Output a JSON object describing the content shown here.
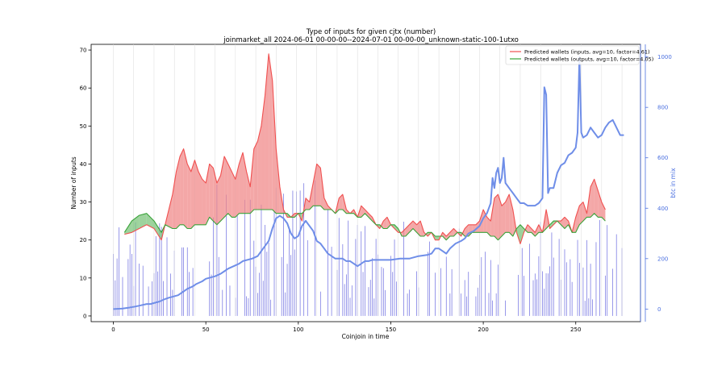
{
  "chart_data": {
    "type": "line",
    "title": "Type of inputs for given cjtx (number)",
    "subtitle": "joinmarket_all 2024-06-01 00-00-00--2024-07-01 00-00-00_unknown-static-100-1utxo",
    "xlabel": "Coinjoin in time",
    "ylabel": "Number of inputs",
    "y2label": "btc in mix",
    "xlim": [
      -12,
      285
    ],
    "ylim": [
      -1.5,
      71.5
    ],
    "y2lim": [
      -50,
      1050
    ],
    "xticks": [
      0,
      50,
      100,
      150,
      200,
      250
    ],
    "yticks": [
      0,
      10,
      20,
      30,
      40,
      50,
      60,
      70
    ],
    "y2ticks": [
      0,
      200,
      400,
      600,
      800,
      1000
    ],
    "legend_position": "upper right",
    "series": [
      {
        "name": "Predicted wallets (inputs, avg=10, factor=4.61)",
        "color": "#f05050",
        "x": [
          6,
          10,
          14,
          18,
          22,
          26,
          28,
          32,
          34,
          36,
          38,
          40,
          42,
          44,
          46,
          48,
          50,
          52,
          54,
          56,
          58,
          60,
          62,
          64,
          66,
          68,
          70,
          72,
          74,
          76,
          78,
          80,
          82,
          84,
          86,
          88,
          90,
          92,
          94,
          96,
          98,
          100,
          102,
          104,
          106,
          108,
          110,
          112,
          114,
          116,
          118,
          120,
          122,
          124,
          126,
          128,
          130,
          132,
          134,
          136,
          138,
          140,
          142,
          144,
          146,
          148,
          150,
          152,
          154,
          156,
          158,
          160,
          162,
          164,
          166,
          168,
          170,
          172,
          174,
          176,
          178,
          180,
          182,
          184,
          186,
          188,
          190,
          192,
          194,
          196,
          198,
          200,
          202,
          204,
          206,
          208,
          210,
          212,
          214,
          216,
          218,
          220,
          222,
          224,
          226,
          228,
          230,
          232,
          234,
          236,
          238,
          240,
          242,
          244,
          246,
          248,
          250,
          252,
          254,
          256,
          258,
          260,
          262,
          264,
          266
        ],
        "values": [
          21.5,
          22,
          23,
          24,
          23,
          20,
          24,
          32,
          38,
          42,
          44,
          40,
          38,
          41,
          38,
          36,
          35,
          40,
          39,
          35,
          37,
          42,
          40,
          38,
          36,
          40,
          43,
          38,
          34,
          44,
          46,
          50,
          58,
          69,
          62,
          44,
          34,
          28,
          26,
          26,
          27,
          27,
          25,
          31,
          30,
          35,
          40,
          39,
          31,
          29,
          28,
          27,
          31,
          32,
          28,
          27,
          28,
          26,
          29,
          28,
          27,
          26,
          24,
          23,
          25,
          26,
          24,
          23,
          22,
          22,
          23,
          24,
          25,
          24,
          25,
          22,
          21,
          22,
          20,
          20,
          22,
          21,
          22,
          23,
          22,
          21,
          23,
          24,
          24,
          24,
          25,
          28,
          26,
          25,
          31,
          32,
          29,
          30,
          32,
          28,
          22,
          19,
          22,
          24,
          23,
          22,
          24,
          22,
          28,
          23,
          24,
          25,
          25,
          26,
          25,
          22,
          26,
          29,
          30,
          27,
          34,
          36,
          33,
          30,
          28
        ]
      },
      {
        "name": "Predicted wallets (outputs, avg=10, factor=4.05)",
        "color": "#3aa33a",
        "x": [
          6,
          10,
          14,
          18,
          22,
          26,
          28,
          32,
          34,
          36,
          38,
          40,
          42,
          44,
          46,
          48,
          50,
          52,
          54,
          56,
          58,
          60,
          62,
          64,
          66,
          68,
          70,
          72,
          74,
          76,
          78,
          80,
          82,
          84,
          86,
          88,
          90,
          92,
          94,
          96,
          98,
          100,
          102,
          104,
          106,
          108,
          110,
          112,
          114,
          116,
          118,
          120,
          122,
          124,
          126,
          128,
          130,
          132,
          134,
          136,
          138,
          140,
          142,
          144,
          146,
          148,
          150,
          152,
          154,
          156,
          158,
          160,
          162,
          164,
          166,
          168,
          170,
          172,
          174,
          176,
          178,
          180,
          182,
          184,
          186,
          188,
          190,
          192,
          194,
          196,
          198,
          200,
          202,
          204,
          206,
          208,
          210,
          212,
          214,
          216,
          218,
          220,
          222,
          224,
          226,
          228,
          230,
          232,
          234,
          236,
          238,
          240,
          242,
          244,
          246,
          248,
          250,
          252,
          254,
          256,
          258,
          260,
          262,
          264,
          266
        ],
        "values": [
          22,
          25,
          26.5,
          27,
          25,
          22,
          24,
          23,
          23,
          24,
          24,
          23,
          23,
          24,
          24,
          24,
          24,
          26,
          25,
          24,
          25,
          26,
          27,
          26,
          26,
          27,
          27,
          27,
          27,
          28,
          28,
          28,
          28,
          28,
          28,
          27,
          27,
          27,
          27,
          26,
          26,
          27,
          27,
          28,
          28,
          29,
          29,
          29,
          28,
          28,
          28,
          27,
          28,
          28,
          27,
          27,
          27,
          26,
          26,
          27,
          26,
          25,
          24,
          24,
          23,
          23,
          24,
          24,
          23,
          21,
          21,
          22,
          23,
          22,
          21,
          21,
          22,
          22,
          21,
          21,
          21,
          20,
          21,
          21,
          22,
          22,
          21,
          21,
          22,
          22,
          22,
          22,
          22,
          21,
          21,
          20,
          21,
          22,
          22,
          21,
          23,
          24,
          23,
          22,
          22,
          21,
          22,
          22,
          23,
          24,
          25,
          25,
          24,
          23,
          24,
          22,
          22,
          24,
          25,
          26,
          26,
          27,
          26,
          26,
          25
        ]
      },
      {
        "name": "btc in mix",
        "color": "#6f8ee8",
        "x": [
          0,
          5,
          8,
          12,
          15,
          18,
          20,
          25,
          28,
          30,
          35,
          38,
          40,
          43,
          45,
          48,
          50,
          55,
          58,
          60,
          62,
          65,
          68,
          70,
          75,
          78,
          80,
          82,
          84,
          86,
          88,
          90,
          92,
          94,
          96,
          98,
          100,
          102,
          104,
          106,
          108,
          110,
          112,
          114,
          116,
          118,
          120,
          122,
          124,
          126,
          128,
          130,
          132,
          134,
          136,
          138,
          140,
          142,
          145,
          150,
          155,
          160,
          165,
          170,
          172,
          174,
          176,
          178,
          180,
          182,
          185,
          188,
          190,
          192,
          195,
          198,
          200,
          202,
          204,
          205,
          206,
          207,
          208,
          209,
          210,
          211,
          212,
          214,
          216,
          218,
          220,
          222,
          224,
          226,
          228,
          230,
          232,
          233,
          234,
          235,
          236,
          238,
          240,
          242,
          244,
          246,
          248,
          250,
          251,
          252,
          253,
          254,
          256,
          258,
          260,
          262,
          264,
          266,
          268,
          270,
          272,
          274,
          276
        ],
        "values": [
          0,
          2,
          5,
          10,
          15,
          20,
          20,
          30,
          40,
          45,
          55,
          70,
          80,
          90,
          100,
          110,
          120,
          130,
          140,
          150,
          160,
          170,
          180,
          190,
          200,
          210,
          230,
          250,
          270,
          320,
          360,
          370,
          360,
          340,
          300,
          280,
          290,
          330,
          350,
          330,
          310,
          270,
          260,
          240,
          220,
          210,
          200,
          200,
          200,
          190,
          190,
          180,
          170,
          180,
          190,
          190,
          195,
          195,
          195,
          195,
          200,
          200,
          210,
          215,
          220,
          240,
          240,
          230,
          220,
          240,
          260,
          270,
          280,
          300,
          310,
          330,
          360,
          380,
          420,
          520,
          480,
          540,
          560,
          500,
          520,
          600,
          500,
          480,
          460,
          440,
          420,
          420,
          410,
          410,
          410,
          420,
          440,
          880,
          850,
          460,
          480,
          480,
          540,
          570,
          580,
          610,
          620,
          640,
          700,
          1000,
          700,
          680,
          690,
          720,
          700,
          680,
          690,
          720,
          740,
          750,
          720,
          690,
          690
        ]
      }
    ]
  }
}
